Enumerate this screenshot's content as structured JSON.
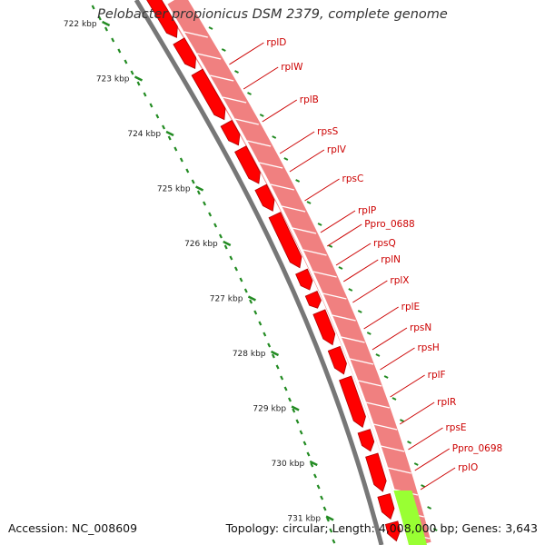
{
  "title": "Pelobacter propionicus DSM 2379, complete genome",
  "footer": {
    "accession": "Accession: NC_008609",
    "summary": "Topology: circular; Length: 4,008,000 bp; Genes: 3,643"
  },
  "scale_labels": [
    "722 kbp",
    "723 kbp",
    "724 kbp",
    "725 kbp",
    "726 kbp",
    "727 kbp",
    "728 kbp",
    "729 kbp",
    "730 kbp",
    "731 kbp"
  ],
  "genes": [
    "rplD",
    "rplW",
    "rplB",
    "rpsS",
    "rplV",
    "rpsC",
    "rplP",
    "Ppro_0688",
    "rpsQ",
    "rplN",
    "rplX",
    "rplE",
    "rpsN",
    "rpsH",
    "rplF",
    "rplR",
    "rpsE",
    "Ppro_0698",
    "rplO"
  ],
  "colors": {
    "cds": "#ff0000",
    "gene_track": "#f08080",
    "highlight": "#99ff33",
    "backbone": "#777777",
    "ticks": "#228b22",
    "gene_label": "#cc0000"
  }
}
